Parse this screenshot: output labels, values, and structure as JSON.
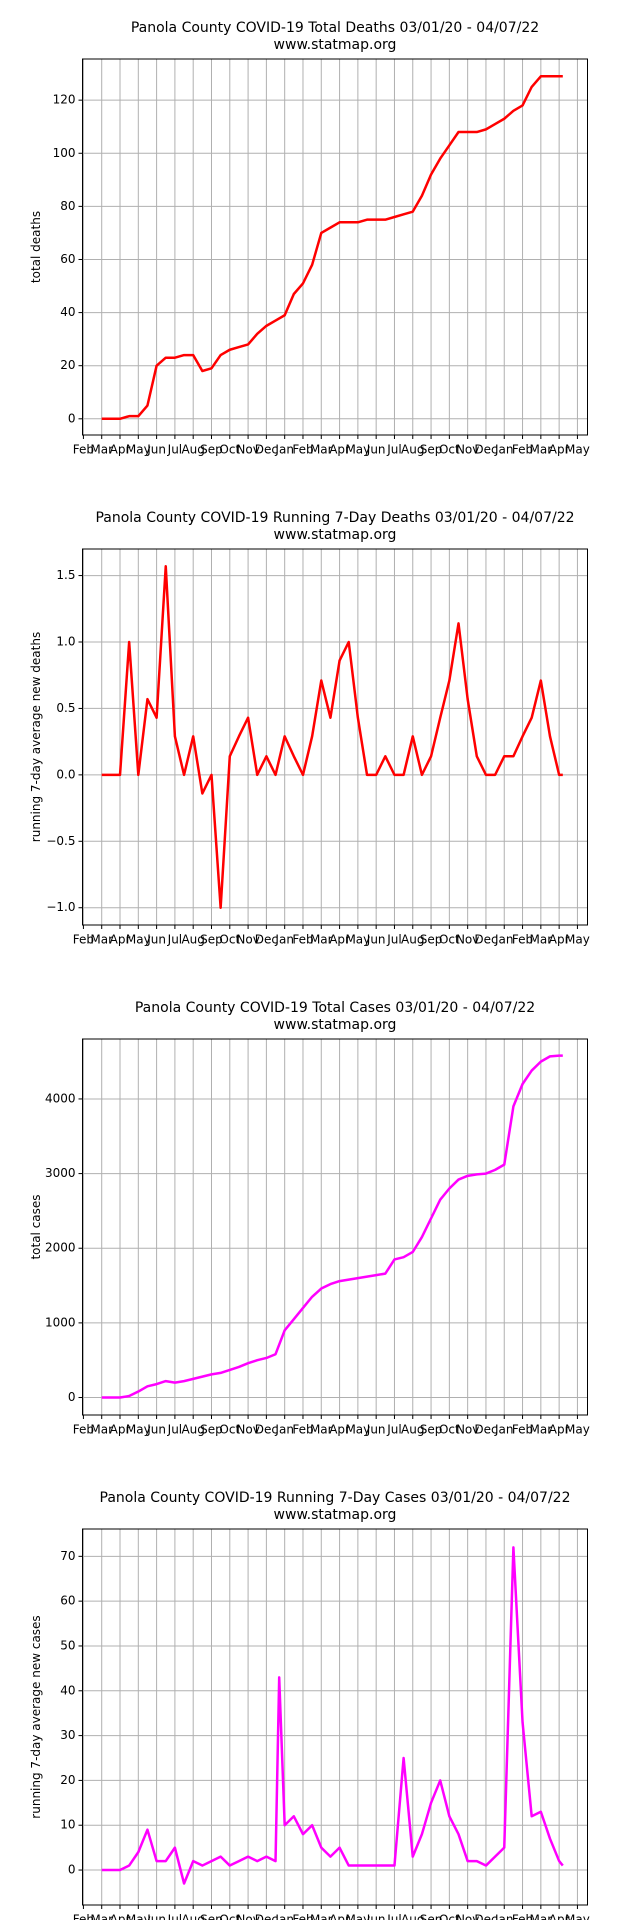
{
  "chart_data": [
    {
      "type": "line",
      "title": "Panola County COVID-19 Total Deaths 03/01/20 - 04/07/22",
      "subtitle": "www.statmap.org",
      "ylabel": "total deaths",
      "color": "#ff0000",
      "grid": true,
      "x": [
        1,
        1.5,
        2,
        2.5,
        3,
        3.5,
        4,
        4.5,
        5,
        5.5,
        6,
        6.5,
        7,
        7.5,
        8,
        8.5,
        9,
        9.5,
        10,
        10.5,
        11,
        11.5,
        12,
        12.5,
        13,
        13.5,
        14,
        14.5,
        15,
        15.5,
        16,
        16.5,
        17,
        17.5,
        18,
        18.5,
        19,
        19.5,
        20,
        20.5,
        21,
        21.5,
        22,
        22.5,
        23,
        23.5,
        24,
        24.5,
        25,
        25.5,
        26,
        26.2
      ],
      "values": [
        0,
        0,
        0,
        1,
        1,
        5,
        20,
        23,
        23,
        24,
        24,
        18,
        19,
        24,
        26,
        27,
        28,
        32,
        35,
        37,
        39,
        47,
        51,
        58,
        70,
        72,
        74,
        74,
        74,
        75,
        75,
        75,
        76,
        77,
        78,
        84,
        92,
        98,
        103,
        108,
        108,
        108,
        109,
        111,
        113,
        116,
        118,
        125,
        129,
        129,
        129,
        129
      ],
      "xlim": [
        -0.05,
        27.55
      ],
      "xticks": [
        {
          "value": 0,
          "label": "Feb"
        },
        {
          "value": 1,
          "label": "Mar"
        },
        {
          "value": 2,
          "label": "Apr"
        },
        {
          "value": 3,
          "label": "May"
        },
        {
          "value": 4,
          "label": "Jun"
        },
        {
          "value": 5,
          "label": "Jul"
        },
        {
          "value": 6,
          "label": "Aug"
        },
        {
          "value": 7,
          "label": "Sep"
        },
        {
          "value": 8,
          "label": "Oct"
        },
        {
          "value": 9,
          "label": "Nov"
        },
        {
          "value": 10,
          "label": "Dec"
        },
        {
          "value": 11,
          "label": "Jan"
        },
        {
          "value": 12,
          "label": "Feb"
        },
        {
          "value": 13,
          "label": "Mar"
        },
        {
          "value": 14,
          "label": "Apr"
        },
        {
          "value": 15,
          "label": "May"
        },
        {
          "value": 16,
          "label": "Jun"
        },
        {
          "value": 17,
          "label": "Jul"
        },
        {
          "value": 18,
          "label": "Aug"
        },
        {
          "value": 19,
          "label": "Sep"
        },
        {
          "value": 20,
          "label": "Oct"
        },
        {
          "value": 21,
          "label": "Nov"
        },
        {
          "value": 22,
          "label": "Dec"
        },
        {
          "value": 23,
          "label": "Jan"
        },
        {
          "value": 24,
          "label": "Feb"
        },
        {
          "value": 25,
          "label": "Mar"
        },
        {
          "value": 26,
          "label": "Apr"
        },
        {
          "value": 27,
          "label": "May"
        }
      ],
      "ylim": [
        -6.1,
        135.5
      ],
      "yticks": [
        0,
        20,
        40,
        60,
        80,
        100,
        120
      ]
    },
    {
      "type": "line",
      "title": "Panola County COVID-19 Running 7-Day Deaths 03/01/20 - 04/07/22",
      "subtitle": "www.statmap.org",
      "ylabel": "running 7-day average new deaths",
      "color": "#ff0000",
      "grid": true,
      "x": [
        1,
        1.5,
        2,
        2.5,
        3,
        3.5,
        4,
        4.5,
        5,
        5.5,
        6,
        6.5,
        7,
        7.5,
        8,
        8.5,
        9,
        9.5,
        10,
        10.5,
        11,
        11.5,
        12,
        12.5,
        13,
        13.5,
        14,
        14.5,
        15,
        15.5,
        16,
        16.5,
        17,
        17.5,
        18,
        18.5,
        19,
        19.5,
        20,
        20.5,
        21,
        21.5,
        22,
        22.5,
        23,
        23.5,
        24,
        24.5,
        25,
        25.5,
        26,
        26.2
      ],
      "values": [
        0,
        0,
        0,
        1.0,
        0,
        0.57,
        0.43,
        1.57,
        0.29,
        0,
        0.29,
        -0.14,
        0,
        -1.0,
        0.14,
        0.29,
        0.43,
        0,
        0.14,
        0,
        0.29,
        0.14,
        0,
        0.29,
        0.71,
        0.43,
        0.86,
        1.0,
        0.43,
        0,
        0,
        0.14,
        0,
        0,
        0.29,
        0,
        0.14,
        0.43,
        0.71,
        1.14,
        0.57,
        0.14,
        0,
        0,
        0.14,
        0.14,
        0.29,
        0.43,
        0.71,
        0.29,
        0,
        0
      ],
      "xlim": [
        -0.05,
        27.55
      ],
      "xticks": [
        {
          "value": 0,
          "label": "Feb"
        },
        {
          "value": 1,
          "label": "Mar"
        },
        {
          "value": 2,
          "label": "Apr"
        },
        {
          "value": 3,
          "label": "May"
        },
        {
          "value": 4,
          "label": "Jun"
        },
        {
          "value": 5,
          "label": "Jul"
        },
        {
          "value": 6,
          "label": "Aug"
        },
        {
          "value": 7,
          "label": "Sep"
        },
        {
          "value": 8,
          "label": "Oct"
        },
        {
          "value": 9,
          "label": "Nov"
        },
        {
          "value": 10,
          "label": "Dec"
        },
        {
          "value": 11,
          "label": "Jan"
        },
        {
          "value": 12,
          "label": "Feb"
        },
        {
          "value": 13,
          "label": "Mar"
        },
        {
          "value": 14,
          "label": "Apr"
        },
        {
          "value": 15,
          "label": "May"
        },
        {
          "value": 16,
          "label": "Jun"
        },
        {
          "value": 17,
          "label": "Jul"
        },
        {
          "value": 18,
          "label": "Aug"
        },
        {
          "value": 19,
          "label": "Sep"
        },
        {
          "value": 20,
          "label": "Oct"
        },
        {
          "value": 21,
          "label": "Nov"
        },
        {
          "value": 22,
          "label": "Dec"
        },
        {
          "value": 23,
          "label": "Jan"
        },
        {
          "value": 24,
          "label": "Feb"
        },
        {
          "value": 25,
          "label": "Mar"
        },
        {
          "value": 26,
          "label": "Apr"
        },
        {
          "value": 27,
          "label": "May"
        }
      ],
      "ylim": [
        -1.13,
        1.7
      ],
      "yticks": [
        {
          "value": -1,
          "label": "−1.0"
        },
        {
          "value": -0.5,
          "label": "−0.5"
        },
        {
          "value": 0,
          "label": "0.0"
        },
        0.5,
        {
          "value": 1,
          "label": "1.0"
        },
        1.5
      ]
    },
    {
      "type": "line",
      "title": "Panola County COVID-19 Total Cases 03/01/20 - 04/07/22",
      "subtitle": "www.statmap.org",
      "ylabel": "total cases",
      "color": "#ff00ff",
      "grid": true,
      "x": [
        1,
        1.5,
        2,
        2.5,
        3,
        3.5,
        4,
        4.5,
        5,
        5.5,
        6,
        6.5,
        7,
        7.5,
        8,
        8.5,
        9,
        9.5,
        10,
        10.5,
        11,
        11.5,
        12,
        12.5,
        13,
        13.5,
        14,
        14.5,
        15,
        15.5,
        16,
        16.5,
        17,
        17.5,
        18,
        18.5,
        19,
        19.5,
        20,
        20.5,
        21,
        21.5,
        22,
        22.5,
        23,
        23.5,
        24,
        24.5,
        25,
        25.5,
        26,
        26.2
      ],
      "values": [
        0,
        0,
        0,
        20,
        80,
        150,
        180,
        220,
        200,
        220,
        250,
        280,
        310,
        330,
        370,
        410,
        460,
        500,
        530,
        580,
        900,
        1050,
        1200,
        1350,
        1460,
        1520,
        1560,
        1580,
        1600,
        1620,
        1640,
        1660,
        1850,
        1880,
        1950,
        2150,
        2400,
        2650,
        2800,
        2920,
        2970,
        2990,
        3000,
        3050,
        3120,
        3900,
        4200,
        4380,
        4500,
        4570,
        4580,
        4580
      ],
      "xlim": [
        -0.05,
        27.55
      ],
      "xticks": [
        {
          "value": 0,
          "label": "Feb"
        },
        {
          "value": 1,
          "label": "Mar"
        },
        {
          "value": 2,
          "label": "Apr"
        },
        {
          "value": 3,
          "label": "May"
        },
        {
          "value": 4,
          "label": "Jun"
        },
        {
          "value": 5,
          "label": "Jul"
        },
        {
          "value": 6,
          "label": "Aug"
        },
        {
          "value": 7,
          "label": "Sep"
        },
        {
          "value": 8,
          "label": "Oct"
        },
        {
          "value": 9,
          "label": "Nov"
        },
        {
          "value": 10,
          "label": "Dec"
        },
        {
          "value": 11,
          "label": "Jan"
        },
        {
          "value": 12,
          "label": "Feb"
        },
        {
          "value": 13,
          "label": "Mar"
        },
        {
          "value": 14,
          "label": "Apr"
        },
        {
          "value": 15,
          "label": "May"
        },
        {
          "value": 16,
          "label": "Jun"
        },
        {
          "value": 17,
          "label": "Jul"
        },
        {
          "value": 18,
          "label": "Aug"
        },
        {
          "value": 19,
          "label": "Sep"
        },
        {
          "value": 20,
          "label": "Oct"
        },
        {
          "value": 21,
          "label": "Nov"
        },
        {
          "value": 22,
          "label": "Dec"
        },
        {
          "value": 23,
          "label": "Jan"
        },
        {
          "value": 24,
          "label": "Feb"
        },
        {
          "value": 25,
          "label": "Mar"
        },
        {
          "value": 26,
          "label": "Apr"
        },
        {
          "value": 27,
          "label": "May"
        }
      ],
      "ylim": [
        -234,
        4803
      ],
      "yticks": [
        0,
        1000,
        2000,
        3000,
        4000
      ]
    },
    {
      "type": "line",
      "title": "Panola County COVID-19 Running 7-Day Cases 03/01/20 - 04/07/22",
      "subtitle": "www.statmap.org",
      "ylabel": "running 7-day average new cases",
      "color": "#ff00ff",
      "grid": true,
      "x": [
        1,
        1.5,
        2,
        2.5,
        3,
        3.5,
        4,
        4.5,
        5,
        5.5,
        6,
        6.5,
        7,
        7.5,
        8,
        8.5,
        9,
        9.5,
        10,
        10.5,
        10.7,
        11,
        11.5,
        12,
        12.5,
        13,
        13.5,
        14,
        14.5,
        15,
        15.5,
        16,
        16.5,
        17,
        17.5,
        18,
        18.5,
        19,
        19.5,
        20,
        20.5,
        21,
        21.5,
        22,
        22.5,
        23,
        23.5,
        24,
        24.5,
        25,
        25.5,
        26,
        26.2
      ],
      "values": [
        0,
        0,
        0,
        1,
        4,
        9,
        2,
        2,
        5,
        -3,
        2,
        1,
        2,
        3,
        1,
        2,
        3,
        2,
        3,
        2,
        43,
        10,
        12,
        8,
        10,
        5,
        3,
        5,
        1,
        1,
        1,
        1,
        1,
        1,
        25,
        3,
        8,
        15,
        20,
        12,
        8,
        2,
        2,
        1,
        3,
        5,
        72,
        33,
        12,
        13,
        7,
        2,
        1
      ],
      "xlim": [
        -0.05,
        27.55
      ],
      "xticks": [
        {
          "value": 0,
          "label": "Feb"
        },
        {
          "value": 1,
          "label": "Mar"
        },
        {
          "value": 2,
          "label": "Apr"
        },
        {
          "value": 3,
          "label": "May"
        },
        {
          "value": 4,
          "label": "Jun"
        },
        {
          "value": 5,
          "label": "Jul"
        },
        {
          "value": 6,
          "label": "Aug"
        },
        {
          "value": 7,
          "label": "Sep"
        },
        {
          "value": 8,
          "label": "Oct"
        },
        {
          "value": 9,
          "label": "Nov"
        },
        {
          "value": 10,
          "label": "Dec"
        },
        {
          "value": 11,
          "label": "Jan"
        },
        {
          "value": 12,
          "label": "Feb"
        },
        {
          "value": 13,
          "label": "Mar"
        },
        {
          "value": 14,
          "label": "Apr"
        },
        {
          "value": 15,
          "label": "May"
        },
        {
          "value": 16,
          "label": "Jun"
        },
        {
          "value": 17,
          "label": "Jul"
        },
        {
          "value": 18,
          "label": "Aug"
        },
        {
          "value": 19,
          "label": "Sep"
        },
        {
          "value": 20,
          "label": "Oct"
        },
        {
          "value": 21,
          "label": "Nov"
        },
        {
          "value": 22,
          "label": "Dec"
        },
        {
          "value": 23,
          "label": "Jan"
        },
        {
          "value": 24,
          "label": "Feb"
        },
        {
          "value": 25,
          "label": "Mar"
        },
        {
          "value": 26,
          "label": "Apr"
        },
        {
          "value": 27,
          "label": "May"
        }
      ],
      "ylim": [
        -7.8,
        76.1
      ],
      "yticks": [
        0,
        10,
        20,
        30,
        40,
        50,
        60,
        70
      ]
    }
  ]
}
